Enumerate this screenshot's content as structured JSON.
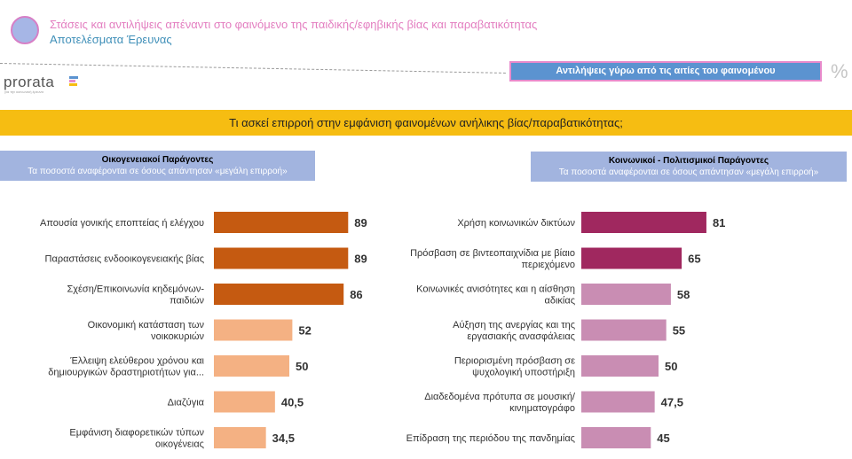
{
  "header": {
    "title": "Στάσεις και αντιλήψεις απέναντι στο φαινόμενο της παιδικής/εφηβικής βίας και παραβατικότητας",
    "subtitle": "Αποτελέσματα Έρευνας",
    "brand": "prorata",
    "brand_tagline": "για την κοινωνική έρευνα",
    "section_label": "Αντιλήψεις γύρω από τις αιτίες του φαινομένου",
    "percent_symbol": "%"
  },
  "question": "Τι ασκεί επιρροή στην εμφάνιση φαινομένων ανήλικης βίας/παραβατικότητας;",
  "left_panel": {
    "title": "Οικογενειακοί Παράγοντες",
    "subtitle": "Τα ποσοστά αναφέρονται σε όσους απάντησαν «μεγάλη επιρροή»"
  },
  "right_panel": {
    "title": "Κοινωνικοί - Πολιτισμικοί Παράγοντες",
    "subtitle": "Τα ποσοστά αναφέρονται σε όσους απάντησαν «μεγάλη επιρροή»"
  },
  "colors": {
    "left_strong": "#c55a11",
    "left_light": "#f4b183",
    "right_strong": "#a0285f",
    "right_light": "#c98db3"
  },
  "chart_data": [
    {
      "type": "bar",
      "orientation": "horizontal",
      "title": "Οικογενειακοί Παράγοντες",
      "categories": [
        [
          "Απουσία γονικής εποπτείας ή ελέγχου"
        ],
        [
          "Παραστάσεις ενδοοικογενειακής βίας"
        ],
        [
          "Σχέση/Επικοινωνία κηδεμόνων-",
          "παιδιών"
        ],
        [
          "Οικονομική κατάσταση των",
          "νοικοκυριών"
        ],
        [
          "Έλλειψη ελεύθερου χρόνου και",
          "δημιουργικών δραστηριοτήτων για..."
        ],
        [
          "Διαζύγια"
        ],
        [
          "Εμφάνιση διαφορετικών τύπων",
          "οικογένειας"
        ]
      ],
      "values": [
        89,
        89,
        86,
        52,
        50,
        40.5,
        34.5
      ],
      "value_labels": [
        "89",
        "89",
        "86",
        "52",
        "50",
        "40,5",
        "34,5"
      ],
      "highlight": [
        true,
        true,
        true,
        false,
        false,
        false,
        false
      ]
    },
    {
      "type": "bar",
      "orientation": "horizontal",
      "title": "Κοινωνικοί - Πολιτισμικοί Παράγοντες",
      "categories": [
        [
          "Χρήση κοινωνικών δικτύων"
        ],
        [
          "Πρόσβαση σε βιντεοπαιχνίδια με βίαιο",
          "περιεχόμενο"
        ],
        [
          "Κοινωνικές ανισότητες και η αίσθηση",
          "αδικίας"
        ],
        [
          "Αύξηση της ανεργίας και της",
          "εργασιακής ανασφάλειας"
        ],
        [
          "Περιορισμένη πρόσβαση σε",
          "ψυχολογική υποστήριξη"
        ],
        [
          "Διαδεδομένα πρότυπα σε μουσική/",
          "κινηματογράφο"
        ],
        [
          "Επίδραση της περιόδου της πανδημίας"
        ]
      ],
      "values": [
        81,
        65,
        58,
        55,
        50,
        47.5,
        45
      ],
      "value_labels": [
        "81",
        "65",
        "58",
        "55",
        "50",
        "47,5",
        "45"
      ],
      "highlight": [
        true,
        true,
        false,
        false,
        false,
        false,
        false
      ]
    }
  ]
}
